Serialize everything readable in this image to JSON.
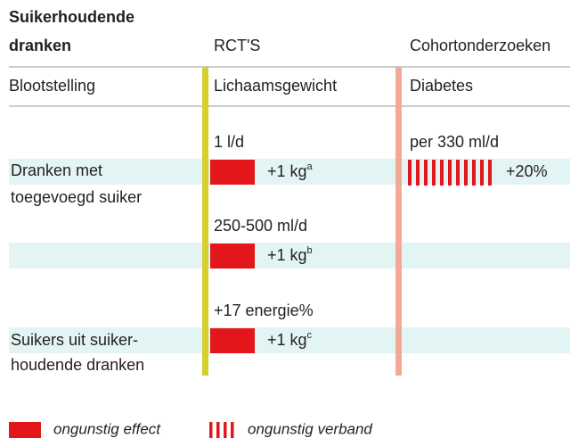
{
  "title": [
    "Suikerhoudende",
    "dranken"
  ],
  "columns": {
    "rct": "RCT'S",
    "cohort": "Cohortonderzoeken"
  },
  "subheaders": [
    "Blootstelling",
    "Lichaamsgewicht",
    "Diabetes"
  ],
  "rows": [
    {
      "label": [
        "Dranken met",
        "toegevoegd suiker"
      ],
      "rct": {
        "dose": "1 l/d",
        "effect": "+1 kg",
        "note": "a"
      },
      "cohort": {
        "dose": "per 330 ml/d",
        "effect": "+20%"
      }
    },
    {
      "rct": {
        "dose": "250-500 ml/d",
        "effect": "+1 kg",
        "note": "b"
      }
    },
    {
      "label": [
        "Suikers uit suiker-",
        "houdende dranken"
      ],
      "rct": {
        "dose": "+17 energie%",
        "effect": "+1 kg",
        "note": "c"
      }
    }
  ],
  "legend": [
    "ongunstig effect",
    "ongunstig verband"
  ]
}
